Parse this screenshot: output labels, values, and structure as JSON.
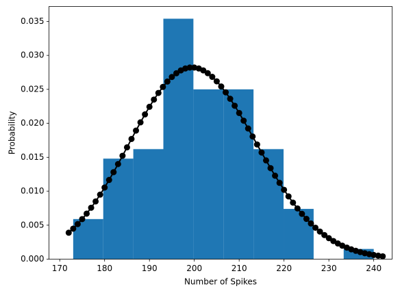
{
  "chart_data": {
    "type": "histogram",
    "xlabel": "Number of Spikes",
    "ylabel": "Probability",
    "bins": [
      173,
      179.7,
      186.4,
      193.1,
      199.8,
      206.5,
      213.2,
      219.9,
      226.6,
      233.3,
      240
    ],
    "values": [
      0.0059,
      0.0148,
      0.0162,
      0.0354,
      0.025,
      0.025,
      0.0162,
      0.0074,
      0,
      0.0015
    ],
    "color": "#1f77b4",
    "overlay": {
      "type": "line",
      "color": "#000000",
      "marker": "o",
      "x": [
        172,
        173,
        174,
        175,
        176,
        177,
        178,
        179,
        180,
        181,
        182,
        183,
        184,
        185,
        186,
        187,
        188,
        189,
        190,
        191,
        192,
        193,
        194,
        195,
        196,
        197,
        198,
        199,
        200,
        201,
        202,
        203,
        204,
        205,
        206,
        207,
        208,
        209,
        210,
        211,
        212,
        213,
        214,
        215,
        216,
        217,
        218,
        219,
        220,
        221,
        222,
        223,
        224,
        225,
        226,
        227,
        228,
        229,
        230,
        231,
        232,
        233,
        234,
        235,
        236,
        237,
        238,
        239,
        240,
        241,
        242
      ],
      "values": [
        0.00389,
        0.00449,
        0.00516,
        0.0059,
        0.0067,
        0.00757,
        0.0085,
        0.0095,
        0.01055,
        0.01166,
        0.01281,
        0.014,
        0.01522,
        0.01646,
        0.0177,
        0.01893,
        0.02014,
        0.02131,
        0.02243,
        0.02349,
        0.02447,
        0.02536,
        0.02615,
        0.02682,
        0.02737,
        0.02779,
        0.02807,
        0.02821,
        0.02821,
        0.02807,
        0.02779,
        0.02738,
        0.02684,
        0.02618,
        0.02542,
        0.02456,
        0.02361,
        0.02259,
        0.02152,
        0.02039,
        0.01924,
        0.01806,
        0.01688,
        0.0157,
        0.01454,
        0.0134,
        0.01229,
        0.01123,
        0.01021,
        0.00924,
        0.00832,
        0.00747,
        0.00667,
        0.00593,
        0.00525,
        0.00463,
        0.00406,
        0.00355,
        0.00309,
        0.00267,
        0.00231,
        0.00198,
        0.0017,
        0.00144,
        0.00123,
        0.00104,
        0.00087,
        0.00073,
        0.00061,
        0.00051,
        0.00042
      ]
    },
    "xlim": [
      167.6,
      244.1
    ],
    "xticks": [
      170,
      180,
      190,
      200,
      210,
      220,
      230,
      240
    ],
    "ylim": [
      0,
      0.0372
    ],
    "yticks": [
      {
        "value": 0,
        "label": "0.000"
      },
      0.005,
      {
        "value": 0.01,
        "label": "0.010"
      },
      0.015,
      {
        "value": 0.02,
        "label": "0.020"
      },
      0.025,
      {
        "value": 0.03,
        "label": "0.030"
      },
      0.035
    ],
    "grid": false
  }
}
